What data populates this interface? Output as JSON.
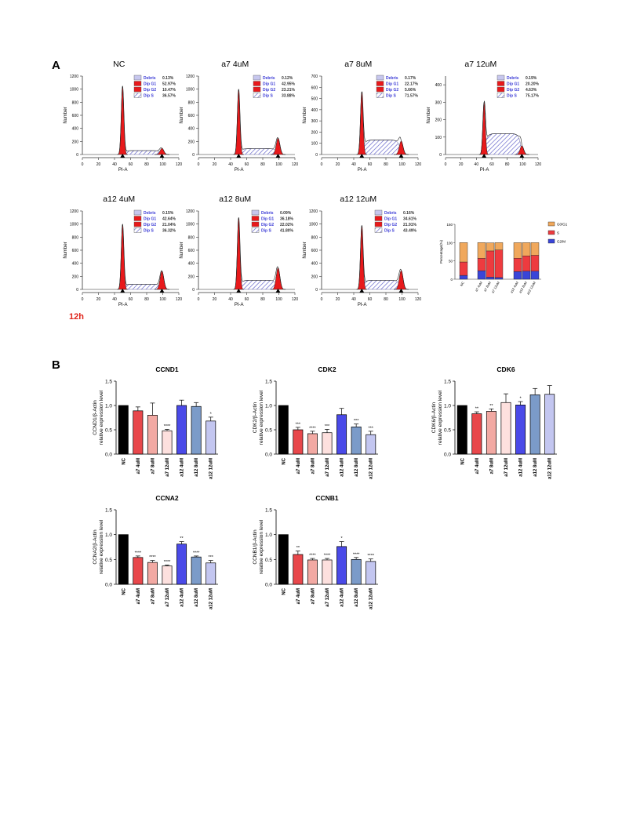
{
  "figure": {
    "panel_a_label": "A",
    "panel_b_label": "B",
    "time_label": "12h",
    "time_color": "#e0261c"
  },
  "legend_terms": [
    "Debris",
    "Dip G1",
    "Dip G2",
    "Dip S"
  ],
  "colors": {
    "histogram_fill": "#e8191b",
    "legend_text": "#3c3cd6",
    "bar_black": "#000000",
    "bar_red": "#e8474b",
    "bar_pink": "#f2a9a3",
    "bar_pale_pink": "#fde0de",
    "bar_blue": "#4a4ae8",
    "bar_steel": "#7b9bc9",
    "bar_lavender": "#c3c6f0",
    "stack_g0g1": "#f0a85c",
    "stack_s": "#ee3b3f",
    "stack_g2m": "#3a45d8"
  },
  "chart_data": [
    {
      "type": "histogram",
      "title": "NC",
      "xlabel": "PI-A",
      "ylabel": "Number",
      "xlim": [
        0,
        120
      ],
      "ylim": [
        0,
        1200
      ],
      "xticks": [
        0,
        20,
        40,
        60,
        80,
        100,
        120
      ],
      "yticks": [
        0,
        200,
        400,
        600,
        800,
        1000,
        1200
      ],
      "g1_peak": 1050,
      "g2_peak": 95,
      "s_plateau": 60,
      "legend": [
        {
          "label": "Debris",
          "value": "0.13%"
        },
        {
          "label": "Dip G1",
          "value": "52.97%"
        },
        {
          "label": "Dip G2",
          "value": "10.47%"
        },
        {
          "label": "Dip S",
          "value": "36.57%"
        }
      ]
    },
    {
      "type": "histogram",
      "title": "a7 4uM",
      "xlabel": "PI-A",
      "ylabel": "Number",
      "xlim": [
        0,
        120
      ],
      "ylim": [
        0,
        1200
      ],
      "xticks": [
        0,
        20,
        40,
        60,
        80,
        100,
        120
      ],
      "yticks": [
        0,
        200,
        400,
        600,
        800,
        1000,
        1200
      ],
      "g1_peak": 1000,
      "g2_peak": 250,
      "s_plateau": 90,
      "legend": [
        {
          "label": "Debris",
          "value": "0.12%"
        },
        {
          "label": "Dip G1",
          "value": "42.95%"
        },
        {
          "label": "Dip G2",
          "value": "23.21%"
        },
        {
          "label": "Dip S",
          "value": "33.88%"
        }
      ]
    },
    {
      "type": "histogram",
      "title": "a7 8uM",
      "xlabel": "PI-A",
      "ylabel": "Number",
      "xlim": [
        0,
        120
      ],
      "ylim": [
        0,
        700
      ],
      "xticks": [
        0,
        20,
        40,
        60,
        80,
        100,
        120
      ],
      "yticks": [
        0,
        100,
        200,
        300,
        400,
        500,
        600,
        700
      ],
      "g1_peak": 560,
      "g2_peak": 120,
      "s_plateau": 130,
      "legend": [
        {
          "label": "Debris",
          "value": "0.17%"
        },
        {
          "label": "Dip G1",
          "value": "22.17%"
        },
        {
          "label": "Dip G2",
          "value": "5.66%"
        },
        {
          "label": "Dip S",
          "value": "71.57%"
        }
      ]
    },
    {
      "type": "histogram",
      "title": "a7 12uM",
      "xlabel": "PI-A",
      "ylabel": "Number",
      "xlim": [
        0,
        120
      ],
      "ylim": [
        0,
        450
      ],
      "xticks": [
        0,
        20,
        40,
        60,
        80,
        100,
        120
      ],
      "yticks": [
        0,
        100,
        200,
        300,
        400
      ],
      "g1_peak": 300,
      "g2_peak": 50,
      "s_plateau": 120,
      "legend": [
        {
          "label": "Debris",
          "value": "0.19%"
        },
        {
          "label": "Dip G1",
          "value": "20.20%"
        },
        {
          "label": "Dip G2",
          "value": "4.63%"
        },
        {
          "label": "Dip S",
          "value": "75.17%"
        }
      ]
    },
    {
      "type": "histogram",
      "title": "a12 4uM",
      "xlabel": "PI-A",
      "ylabel": "Number",
      "xlim": [
        0,
        120
      ],
      "ylim": [
        0,
        1200
      ],
      "xticks": [
        0,
        20,
        40,
        60,
        80,
        100,
        120
      ],
      "yticks": [
        0,
        200,
        400,
        600,
        800,
        1000,
        1200
      ],
      "g1_peak": 1000,
      "g2_peak": 280,
      "s_plateau": 80,
      "legend": [
        {
          "label": "Debris",
          "value": "0.15%"
        },
        {
          "label": "Dip G1",
          "value": "42.64%"
        },
        {
          "label": "Dip G2",
          "value": "21.04%"
        },
        {
          "label": "Dip S",
          "value": "36.32%"
        }
      ]
    },
    {
      "type": "histogram",
      "title": "a12 8uM",
      "xlabel": "PI-A",
      "ylabel": "Number",
      "xlim": [
        0,
        120
      ],
      "ylim": [
        0,
        1200
      ],
      "xticks": [
        0,
        20,
        40,
        60,
        80,
        100,
        120
      ],
      "yticks": [
        0,
        200,
        400,
        600,
        800,
        1000,
        1200
      ],
      "g1_peak": 1100,
      "g2_peak": 330,
      "s_plateau": 140,
      "legend": [
        {
          "label": "Debris",
          "value": "0.09%"
        },
        {
          "label": "Dip G1",
          "value": "36.18%"
        },
        {
          "label": "Dip G2",
          "value": "22.02%"
        },
        {
          "label": "Dip S",
          "value": "41.80%"
        }
      ]
    },
    {
      "type": "histogram",
      "title": "a12 12uM",
      "xlabel": "PI-A",
      "ylabel": "Number",
      "xlim": [
        0,
        120
      ],
      "ylim": [
        0,
        1200
      ],
      "xticks": [
        0,
        20,
        40,
        60,
        80,
        100,
        120
      ],
      "yticks": [
        0,
        200,
        400,
        600,
        800,
        1000,
        1200
      ],
      "g1_peak": 980,
      "g2_peak": 290,
      "s_plateau": 140,
      "legend": [
        {
          "label": "Debris",
          "value": "0.16%"
        },
        {
          "label": "Dip G1",
          "value": "34.61%"
        },
        {
          "label": "Dip G2",
          "value": "21.91%"
        },
        {
          "label": "Dip S",
          "value": "43.49%"
        }
      ]
    },
    {
      "type": "stacked_bar",
      "ylabel": "Percentage(%)",
      "ylim": [
        0,
        150
      ],
      "yticks": [
        0,
        50,
        100,
        150
      ],
      "categories": [
        "NC",
        "a7 4uM",
        "a7 8uM",
        "a7 12uM",
        "a12 4uM",
        "a12 8uM",
        "a12 12uM"
      ],
      "series": [
        {
          "name": "G2/M",
          "values": [
            10.5,
            23.2,
            5.7,
            4.6,
            21.0,
            22.0,
            21.9
          ]
        },
        {
          "name": "S",
          "values": [
            36.6,
            33.9,
            71.6,
            75.2,
            36.3,
            41.8,
            43.5
          ]
        },
        {
          "name": "G0/G1",
          "values": [
            53.0,
            43.0,
            22.2,
            20.2,
            42.6,
            36.2,
            34.6
          ]
        }
      ]
    },
    {
      "type": "bar",
      "title": "CCND1",
      "ylabel": "CCND1/β-Actin relative expression level",
      "ylim": [
        0,
        1.5
      ],
      "yticks": [
        "0.0",
        "0.5",
        "1.0",
        "1.5"
      ],
      "categories": [
        "NC",
        "a7 4uM",
        "a7 8uM",
        "a7 12uM",
        "a12 4uM",
        "a12 8uM",
        "a12 12uM"
      ],
      "values": [
        1.0,
        0.89,
        0.8,
        0.48,
        1.0,
        0.98,
        0.68
      ],
      "errors": [
        0.0,
        0.08,
        0.25,
        0.03,
        0.11,
        0.08,
        0.08
      ],
      "sig": [
        "",
        "",
        "",
        "****",
        "",
        "",
        "*"
      ]
    },
    {
      "type": "bar",
      "title": "CDK2",
      "ylabel": "CDK2/β-Actin relative expression level",
      "ylim": [
        0,
        1.5
      ],
      "yticks": [
        "0.0",
        "0.5",
        "1.0",
        "1.5"
      ],
      "categories": [
        "NC",
        "a7 4uM",
        "a7 8uM",
        "a7 12uM",
        "a12 4uM",
        "a12 8uM",
        "a12 12uM"
      ],
      "values": [
        1.0,
        0.5,
        0.42,
        0.44,
        0.81,
        0.56,
        0.4
      ],
      "errors": [
        0.0,
        0.05,
        0.05,
        0.07,
        0.13,
        0.06,
        0.07
      ],
      "sig": [
        "",
        "***",
        "****",
        "***",
        "",
        "***",
        "***"
      ]
    },
    {
      "type": "bar",
      "title": "CDK6",
      "ylabel": "CDK6/β-Actin relative expression level",
      "ylim": [
        0,
        1.5
      ],
      "yticks": [
        "0.0",
        "0.5",
        "1.0",
        "1.5"
      ],
      "categories": [
        "NC",
        "a7 4uM",
        "a7 8uM",
        "a7 12uM",
        "a12 4uM",
        "a12 8uM",
        "a12 12uM"
      ],
      "values": [
        1.0,
        0.83,
        0.88,
        1.06,
        1.01,
        1.22,
        1.23
      ],
      "errors": [
        0.0,
        0.04,
        0.05,
        0.18,
        0.07,
        0.13,
        0.18
      ],
      "sig": [
        "",
        "**",
        "**",
        "",
        "*",
        "",
        ""
      ]
    },
    {
      "type": "bar",
      "title": "CCNA2",
      "ylabel": "CCNA2/β-Actin relative expression level",
      "ylim": [
        0,
        1.5
      ],
      "yticks": [
        "0.0",
        "0.5",
        "1.0",
        "1.5"
      ],
      "categories": [
        "NC",
        "a7 4uM",
        "a7 8uM",
        "a7 12uM",
        "a12 4uM",
        "a12 8uM",
        "a12 12uM"
      ],
      "values": [
        1.0,
        0.54,
        0.44,
        0.37,
        0.81,
        0.55,
        0.43
      ],
      "errors": [
        0.0,
        0.03,
        0.04,
        0.02,
        0.05,
        0.02,
        0.05
      ],
      "sig": [
        "",
        "****",
        "****",
        "****",
        "**",
        "****",
        "***"
      ]
    },
    {
      "type": "bar",
      "title": "CCNB1",
      "ylabel": "CCNB1/β-Actin relative expression level",
      "ylim": [
        0,
        1.5
      ],
      "yticks": [
        "0.0",
        "0.5",
        "1.0",
        "1.5"
      ],
      "categories": [
        "NC",
        "a7 4uM",
        "a7 8uM",
        "a7 12uM",
        "a12 4uM",
        "a12 8uM",
        "a12 12uM"
      ],
      "values": [
        1.0,
        0.6,
        0.49,
        0.49,
        0.76,
        0.5,
        0.46
      ],
      "errors": [
        0.0,
        0.07,
        0.03,
        0.03,
        0.1,
        0.04,
        0.05
      ],
      "sig": [
        "",
        "**",
        "****",
        "****",
        "*",
        "****",
        "****"
      ]
    }
  ]
}
